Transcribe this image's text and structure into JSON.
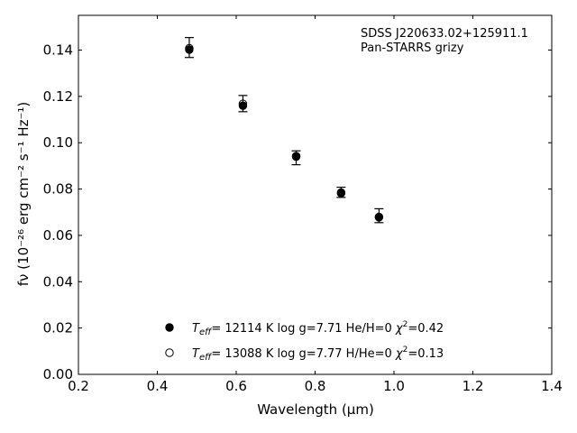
{
  "chart_data": {
    "type": "scatter",
    "annotation": [
      "SDSS J220633.02+125911.1",
      "Pan-STARRS grizy"
    ],
    "xlabel": "Wavelength (μm)",
    "ylabel": "fν (10⁻²⁶ erg cm⁻² s⁻¹ Hz⁻¹)",
    "xlim": [
      0.2,
      1.4
    ],
    "ylim": [
      0.0,
      0.155
    ],
    "xticks": [
      "0.2",
      "0.4",
      "0.6",
      "0.8",
      "1.0",
      "1.2",
      "1.4"
    ],
    "yticks": [
      "0.00",
      "0.02",
      "0.04",
      "0.06",
      "0.08",
      "0.10",
      "0.12",
      "0.14"
    ],
    "observed": {
      "x": [
        0.481,
        0.617,
        0.752,
        0.866,
        0.962
      ],
      "y": [
        0.1411,
        0.1169,
        0.0935,
        0.0786,
        0.0685
      ],
      "err": [
        0.0043,
        0.0035,
        0.003,
        0.0022,
        0.003
      ]
    },
    "series": [
      {
        "name": "Teff= 12114 K  log g=7.71  He/H=0  χ²=0.42",
        "marker": "filled",
        "values": [
          0.1402,
          0.116,
          0.094,
          0.0782,
          0.0678
        ]
      },
      {
        "name": "Teff= 13088 K  log g=7.77  H/He=0  χ²=0.13",
        "marker": "open",
        "values": [
          0.1408,
          0.1168,
          0.0942,
          0.0785,
          0.068
        ]
      }
    ],
    "legend": [
      {
        "pre": "T",
        "sub": "eff",
        "post": "= 12114 K  log g=7.71  He/H=0  ",
        "chi": "χ",
        "chisup": "2",
        "chival": "=0.42",
        "marker": "filled"
      },
      {
        "pre": "T",
        "sub": "eff",
        "post": "= 13088 K  log g=7.77  H/He=0  ",
        "chi": "χ",
        "chisup": "2",
        "chival": "=0.13",
        "marker": "open"
      }
    ],
    "legend_position": "lower-center",
    "grid": false
  }
}
